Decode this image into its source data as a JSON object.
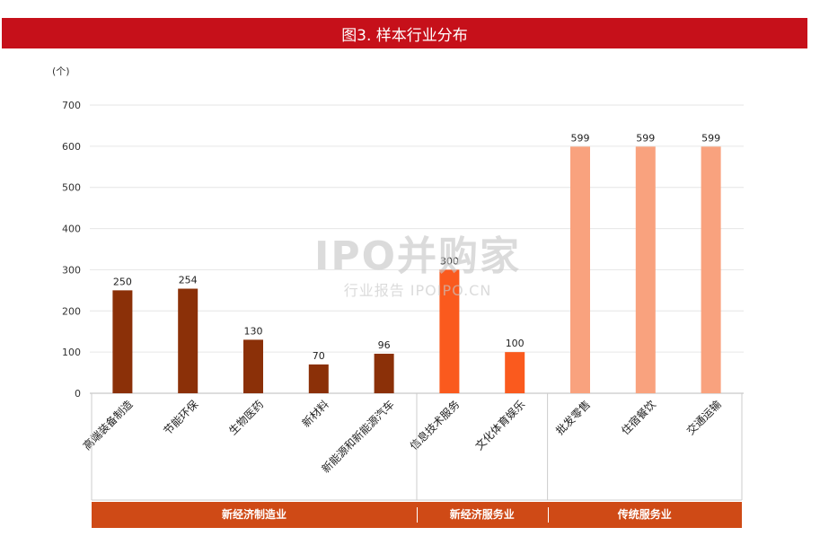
{
  "title": "图3. 样本行业分布",
  "unit_label": "(个)",
  "watermark": {
    "main": "IPO并购家",
    "sub": "行业报告 IPOIPO.CN"
  },
  "chart_data": {
    "type": "bar",
    "ylim": [
      0,
      700
    ],
    "yticks": [
      0,
      100,
      200,
      300,
      400,
      500,
      600,
      700
    ],
    "grid": true,
    "categories": [
      "高端装备制造",
      "节能环保",
      "生物医药",
      "新材料",
      "新能源和新能源汽车",
      "信息技术服务",
      "文化体育娱乐",
      "批发零售",
      "住宿餐饮",
      "交通运输"
    ],
    "values": [
      250,
      254,
      130,
      70,
      96,
      300,
      100,
      599,
      599,
      599
    ],
    "data_labels": [
      "250",
      "254",
      "130",
      "70",
      "96",
      "300",
      "100",
      "599",
      "599",
      "599"
    ],
    "groups": [
      {
        "name": "新经济制造业",
        "start": 0,
        "end": 4,
        "color": "#8b3008"
      },
      {
        "name": "新经济服务业",
        "start": 5,
        "end": 6,
        "color": "#fa5a1e"
      },
      {
        "name": "传统服务业",
        "start": 7,
        "end": 9,
        "color": "#f9a27e"
      }
    ]
  }
}
